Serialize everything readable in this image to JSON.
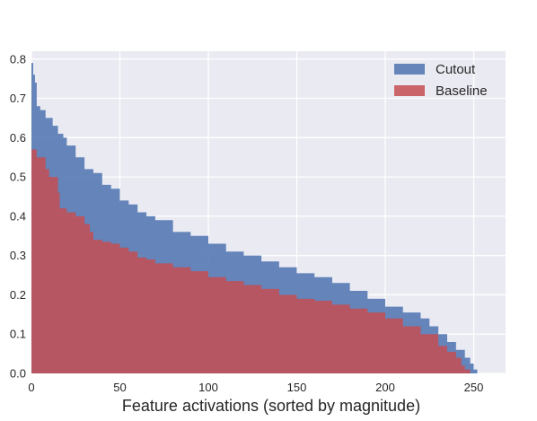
{
  "chart_data": {
    "type": "area",
    "title": "",
    "xlabel": "Feature activations (sorted by magnitude)",
    "ylabel": "",
    "xlim": [
      0,
      268
    ],
    "ylim": [
      0,
      0.82
    ],
    "xticks": [
      "0",
      "50",
      "100",
      "150",
      "200",
      "250"
    ],
    "yticks": [
      "0.0",
      "0.1",
      "0.2",
      "0.3",
      "0.4",
      "0.5",
      "0.6",
      "0.7",
      "0.8"
    ],
    "grid": true,
    "legend_position": "top-right",
    "colors": {
      "background": "#eaeaf2",
      "grid": "#ffffff"
    },
    "series": [
      {
        "name": "Cutout",
        "color": "#4c72b0",
        "points": [
          [
            0,
            0.79
          ],
          [
            1,
            0.76
          ],
          [
            2,
            0.74
          ],
          [
            3,
            0.68
          ],
          [
            5,
            0.67
          ],
          [
            8,
            0.65
          ],
          [
            12,
            0.63
          ],
          [
            15,
            0.61
          ],
          [
            18,
            0.6
          ],
          [
            20,
            0.58
          ],
          [
            25,
            0.55
          ],
          [
            30,
            0.52
          ],
          [
            35,
            0.51
          ],
          [
            40,
            0.48
          ],
          [
            45,
            0.47
          ],
          [
            50,
            0.44
          ],
          [
            55,
            0.43
          ],
          [
            60,
            0.41
          ],
          [
            65,
            0.4
          ],
          [
            70,
            0.39
          ],
          [
            80,
            0.36
          ],
          [
            90,
            0.35
          ],
          [
            100,
            0.33
          ],
          [
            110,
            0.31
          ],
          [
            120,
            0.3
          ],
          [
            130,
            0.285
          ],
          [
            140,
            0.27
          ],
          [
            150,
            0.255
          ],
          [
            160,
            0.245
          ],
          [
            170,
            0.23
          ],
          [
            180,
            0.21
          ],
          [
            190,
            0.19
          ],
          [
            200,
            0.17
          ],
          [
            210,
            0.155
          ],
          [
            220,
            0.14
          ],
          [
            225,
            0.12
          ],
          [
            230,
            0.1
          ],
          [
            235,
            0.08
          ],
          [
            240,
            0.06
          ],
          [
            245,
            0.04
          ],
          [
            248,
            0.025
          ],
          [
            250,
            0.01
          ],
          [
            252,
            0.0
          ]
        ]
      },
      {
        "name": "Baseline",
        "color": "#c44e52",
        "points": [
          [
            0,
            0.57
          ],
          [
            3,
            0.55
          ],
          [
            8,
            0.52
          ],
          [
            10,
            0.5
          ],
          [
            15,
            0.46
          ],
          [
            16,
            0.42
          ],
          [
            20,
            0.41
          ],
          [
            25,
            0.4
          ],
          [
            30,
            0.38
          ],
          [
            33,
            0.36
          ],
          [
            35,
            0.34
          ],
          [
            40,
            0.335
          ],
          [
            45,
            0.33
          ],
          [
            50,
            0.32
          ],
          [
            55,
            0.31
          ],
          [
            60,
            0.295
          ],
          [
            65,
            0.29
          ],
          [
            70,
            0.28
          ],
          [
            80,
            0.27
          ],
          [
            90,
            0.26
          ],
          [
            100,
            0.245
          ],
          [
            110,
            0.235
          ],
          [
            120,
            0.225
          ],
          [
            130,
            0.215
          ],
          [
            140,
            0.2
          ],
          [
            150,
            0.19
          ],
          [
            160,
            0.185
          ],
          [
            170,
            0.175
          ],
          [
            180,
            0.165
          ],
          [
            190,
            0.155
          ],
          [
            200,
            0.14
          ],
          [
            210,
            0.12
          ],
          [
            220,
            0.1
          ],
          [
            230,
            0.07
          ],
          [
            235,
            0.055
          ],
          [
            240,
            0.04
          ],
          [
            243,
            0.02
          ],
          [
            245,
            0.01
          ],
          [
            248,
            0.0
          ]
        ]
      }
    ]
  }
}
